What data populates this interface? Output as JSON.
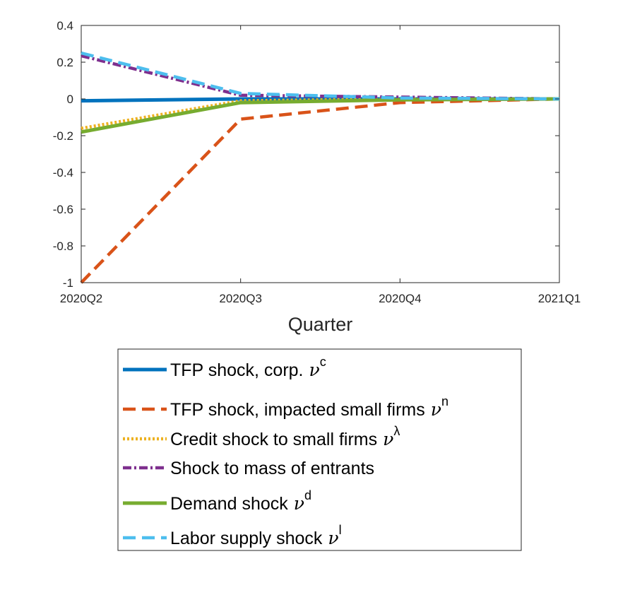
{
  "chart_data": {
    "type": "line",
    "categories": [
      "2020Q2",
      "2020Q3",
      "2020Q4",
      "2021Q1"
    ],
    "xlabel": "Quarter",
    "ylabel": "",
    "title": "",
    "ylim": [
      -1,
      0.4
    ],
    "yticks": [
      "0.4",
      "0.2",
      "0",
      "-0.2",
      "-0.4",
      "-0.6",
      "-0.8",
      "-1"
    ],
    "ytick_values": [
      0.4,
      0.2,
      0,
      -0.2,
      -0.4,
      -0.6,
      -0.8,
      -1
    ],
    "grid": false,
    "legend_position": "below",
    "series": [
      {
        "name": "TFP shock, corp.",
        "symbol": "ν",
        "sup": "c",
        "color": "#0072BD",
        "style": "solid",
        "values": [
          -0.01,
          0.0,
          0.0,
          0.0
        ]
      },
      {
        "name": "TFP shock, impacted small firms",
        "symbol": "ν",
        "sup": "n",
        "color": "#D95319",
        "style": "dashed",
        "values": [
          -1.0,
          -0.11,
          -0.02,
          0.0
        ]
      },
      {
        "name": "Credit shock to small firms",
        "symbol": "ν",
        "sup": "λ",
        "color": "#EDB120",
        "style": "dotted",
        "values": [
          -0.16,
          -0.01,
          0.0,
          0.0
        ]
      },
      {
        "name": "Shock to mass of entrants",
        "symbol": "",
        "sup": "",
        "color": "#7E2F8E",
        "style": "dashdot",
        "values": [
          0.235,
          0.02,
          0.01,
          0.0
        ]
      },
      {
        "name": "Demand shock",
        "symbol": "ν",
        "sup": "d",
        "color": "#77AC30",
        "style": "solid",
        "values": [
          -0.18,
          -0.02,
          -0.005,
          0.0
        ]
      },
      {
        "name": "Labor supply shock",
        "symbol": "ν",
        "sup": "l",
        "color": "#4DBEEE",
        "style": "dashed",
        "values": [
          0.25,
          0.03,
          0.005,
          0.0
        ]
      }
    ]
  }
}
